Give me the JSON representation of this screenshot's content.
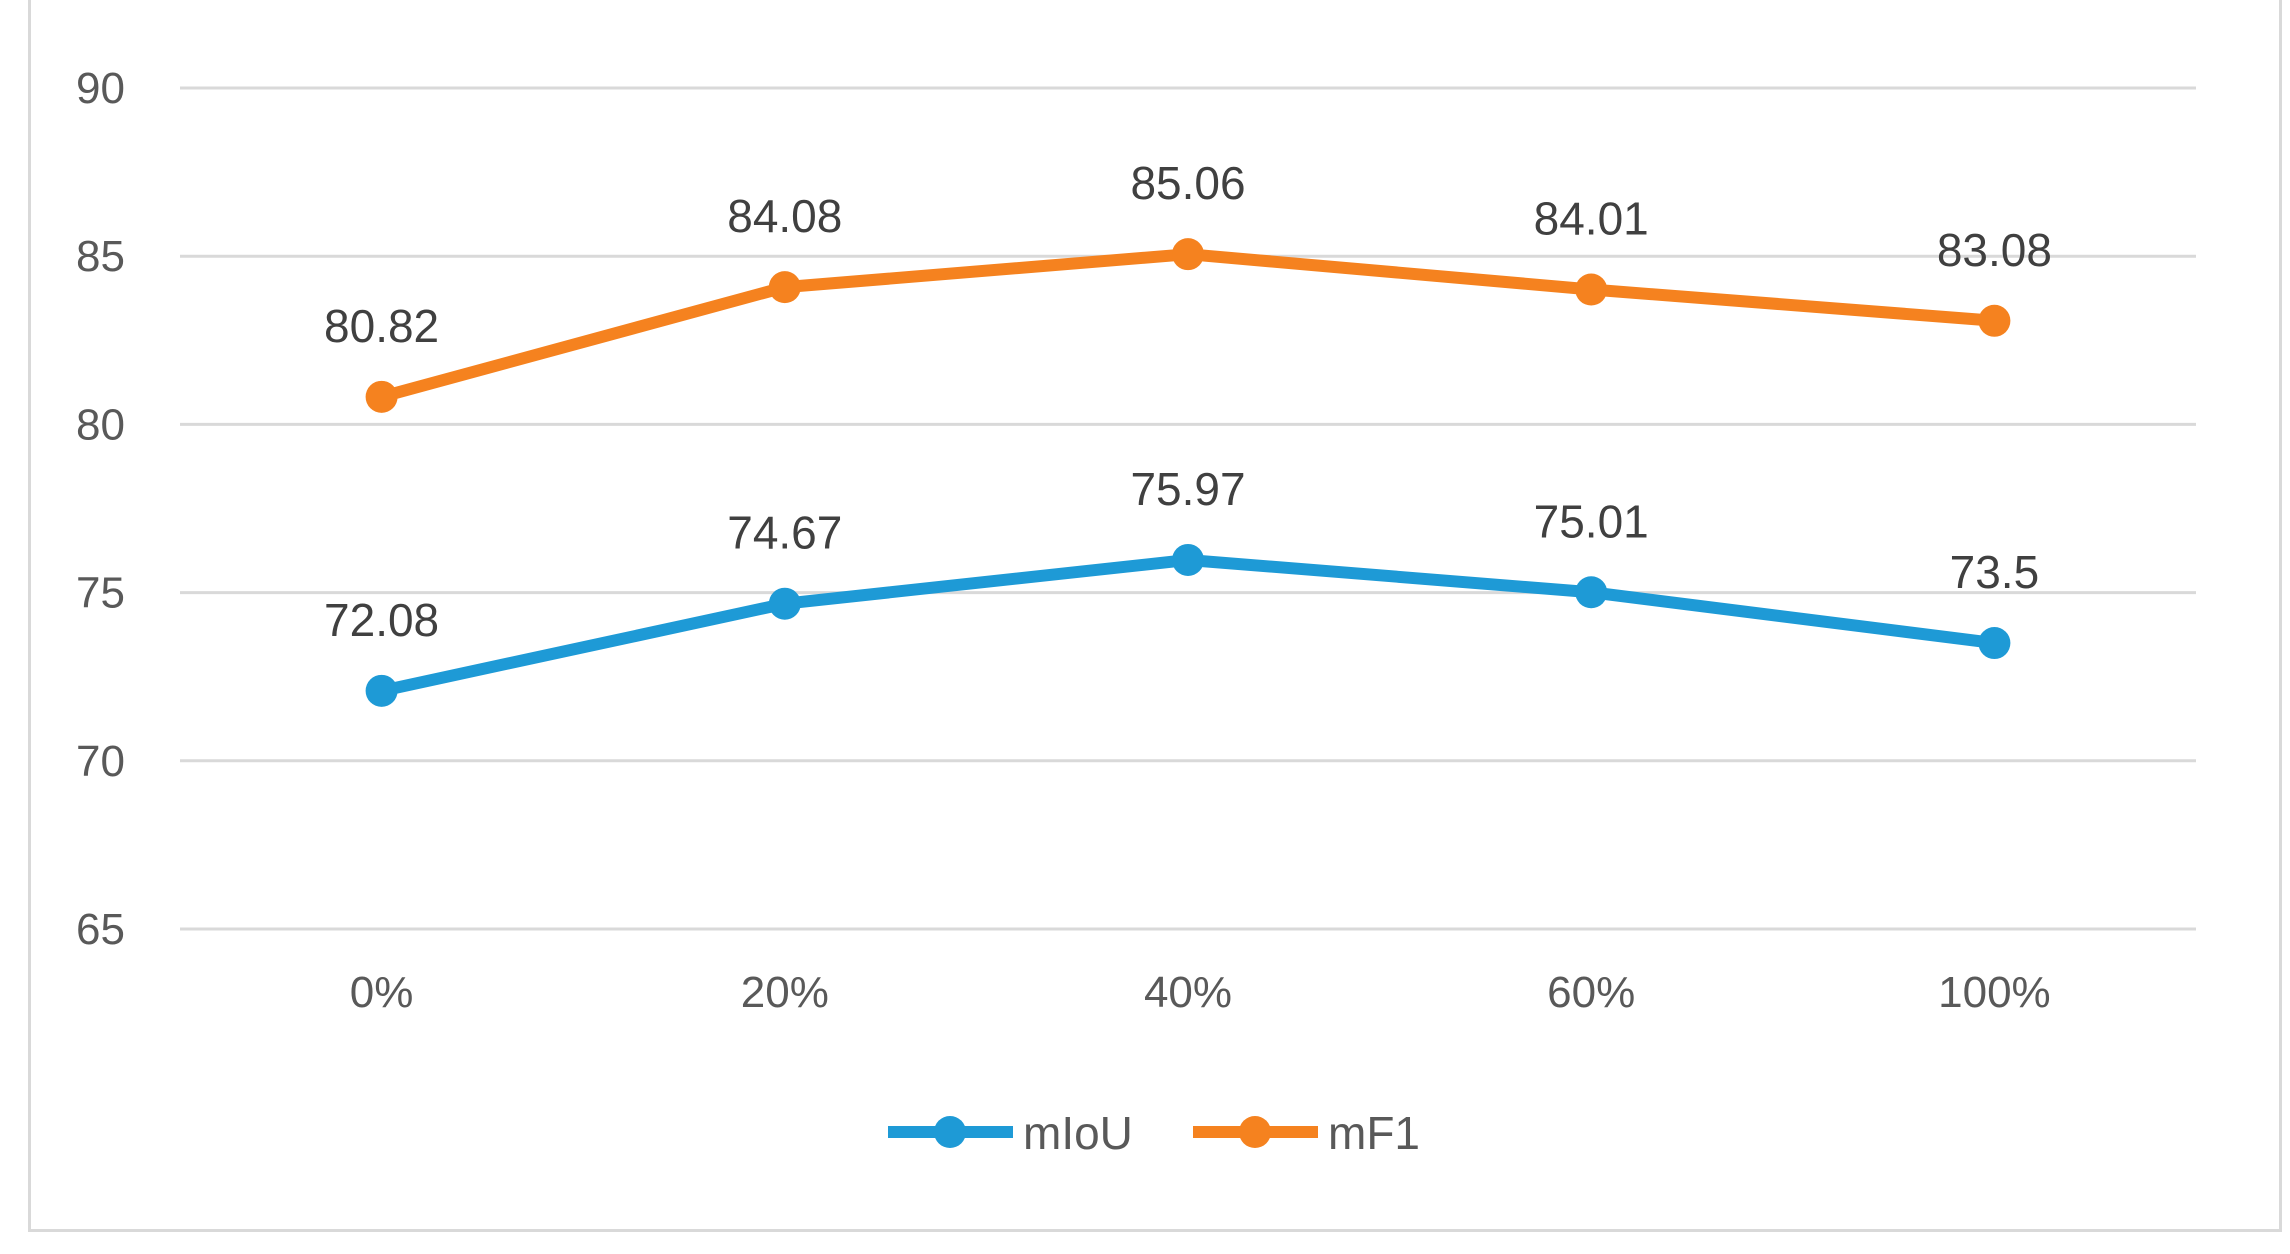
{
  "chart_data": {
    "type": "line",
    "title": "",
    "xlabel": "",
    "ylabel": "",
    "categories": [
      "0%",
      "20%",
      "40%",
      "60%",
      "100%"
    ],
    "ylim": [
      65,
      90
    ],
    "yticks": [
      "65",
      "70",
      "75",
      "80",
      "85",
      "90"
    ],
    "grid": true,
    "legend_position": "bottom",
    "series": [
      {
        "name": "mIoU",
        "color": "#1e9ad6",
        "values": [
          72.08,
          74.67,
          75.97,
          75.01,
          73.5
        ],
        "labels": [
          "72.08",
          "74.67",
          "75.97",
          "75.01",
          "73.5"
        ]
      },
      {
        "name": "mF1",
        "color": "#f5821f",
        "values": [
          80.82,
          84.08,
          85.06,
          84.01,
          83.08
        ],
        "labels": [
          "80.82",
          "84.08",
          "85.06",
          "84.01",
          "83.08"
        ]
      }
    ]
  }
}
